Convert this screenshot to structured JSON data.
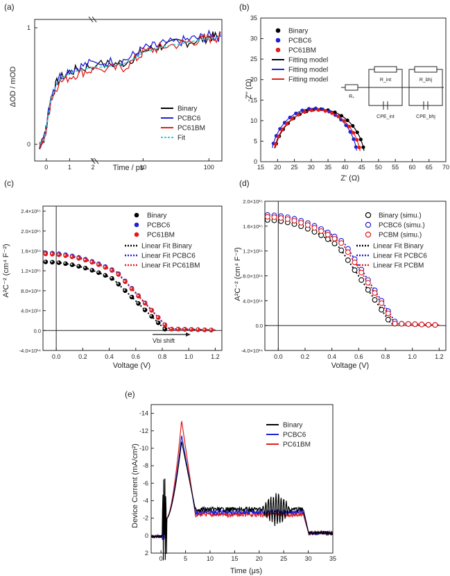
{
  "colors": {
    "binary": "#000000",
    "pcbc6": "#1f1fd6",
    "pc61bm": "#e01b1b",
    "fit": "#22d3d3",
    "axis": "#222222"
  },
  "chart_data": [
    {
      "panel": "(a)",
      "type": "line",
      "xlabel": "Time / ps",
      "ylabel": "ΔOD / mOD",
      "x_ticks": [
        "0",
        "1",
        "2",
        "10",
        "100"
      ],
      "y_ticks": [
        "0",
        "1"
      ],
      "legend": [
        "Binary",
        "PCBC6",
        "PC61BM",
        "Fit"
      ],
      "legend_position": "lower-right",
      "series": [
        {
          "name": "Binary",
          "x": [
            -0.3,
            -0.1,
            0,
            0.2,
            0.5,
            1,
            1.5,
            2,
            5,
            10,
            20,
            50,
            100,
            150
          ],
          "y": [
            0.0,
            0.05,
            0.15,
            0.4,
            0.55,
            0.62,
            0.65,
            0.68,
            0.7,
            0.8,
            0.85,
            0.88,
            0.92,
            0.93
          ]
        },
        {
          "name": "PCBC6",
          "x": [
            -0.3,
            -0.1,
            0,
            0.2,
            0.5,
            1,
            1.5,
            2,
            5,
            10,
            20,
            50,
            100,
            150
          ],
          "y": [
            0.0,
            0.05,
            0.15,
            0.42,
            0.57,
            0.64,
            0.67,
            0.7,
            0.72,
            0.82,
            0.86,
            0.9,
            0.93,
            0.92
          ]
        },
        {
          "name": "PC61BM",
          "x": [
            -0.3,
            -0.1,
            0,
            0.2,
            0.5,
            1,
            1.5,
            2,
            5,
            10,
            20,
            50,
            100,
            150
          ],
          "y": [
            0.0,
            0.04,
            0.13,
            0.38,
            0.52,
            0.58,
            0.62,
            0.64,
            0.66,
            0.79,
            0.84,
            0.88,
            0.91,
            0.92
          ]
        },
        {
          "name": "Fit",
          "x": [
            -0.3,
            -0.1,
            0,
            0.2,
            0.5,
            1,
            1.5,
            2,
            5,
            10,
            20,
            50,
            100,
            150
          ],
          "y": [
            0.0,
            0.04,
            0.14,
            0.39,
            0.54,
            0.61,
            0.64,
            0.66,
            0.69,
            0.79,
            0.84,
            0.88,
            0.91,
            0.92
          ]
        }
      ]
    },
    {
      "panel": "(b)",
      "type": "scatter",
      "xlabel": "Z' (Ω)",
      "ylabel": "-Z'' (Ω)",
      "xlim": [
        15,
        70
      ],
      "ylim": [
        0,
        35
      ],
      "x_ticks": [
        "15",
        "20",
        "25",
        "30",
        "35",
        "40",
        "45",
        "50",
        "55",
        "60",
        "65",
        "70"
      ],
      "y_ticks": [
        "0",
        "5",
        "10",
        "15",
        "20",
        "25",
        "30",
        "35"
      ],
      "legend": [
        "Binary",
        "PCBC6",
        "PC61BM",
        "Fitting model",
        "Fitting model",
        "Fitting model"
      ],
      "circuit_labels": [
        "Rₛ",
        "R_int",
        "R_bhj",
        "CPE_int",
        "CPE_bhj"
      ],
      "series": [
        {
          "name": "Binary",
          "center": 32.4,
          "radius": 13.6,
          "y_max": 12.8
        },
        {
          "name": "PCBC6",
          "center": 30.9,
          "radius": 12.9,
          "y_max": 13.0
        },
        {
          "name": "PC61BM",
          "center": 31.7,
          "radius": 13.1,
          "y_max": 12.6
        }
      ]
    },
    {
      "panel": "(c)",
      "type": "scatter",
      "xlabel": "Voltage (V)",
      "ylabel": "A²C⁻² (cm⁴ F⁻²)",
      "xlim": [
        -0.1,
        1.25
      ],
      "ylim": [
        -400000000000000.0,
        2500000000000000.0
      ],
      "x_ticks": [
        "0.0",
        "0.2",
        "0.4",
        "0.6",
        "0.8",
        "1.0",
        "1.2"
      ],
      "y_ticks": [
        "-4.0×10¹⁴",
        "0.0",
        "4.0×10¹⁴",
        "8.0×10¹⁴",
        "1.2×10¹⁵",
        "1.6×10¹⁵",
        "2.0×10¹⁵",
        "2.4×10¹⁵"
      ],
      "legend": [
        "Binary",
        "PCBC6",
        "PC61BM",
        "Linear Fit Binary",
        "Linear Fit PCBC6",
        "Linear Fit PC61BM"
      ],
      "annotation": "Vbi shift",
      "series": [
        {
          "name": "Binary",
          "v0": 1380000000000000.0,
          "vbi": 0.78
        },
        {
          "name": "PCBC6",
          "v0": 1560000000000000.0,
          "vbi": 0.81
        },
        {
          "name": "PC61BM",
          "v0": 1540000000000000.0,
          "vbi": 0.81
        }
      ]
    },
    {
      "panel": "(d)",
      "type": "scatter",
      "xlabel": "Voltage (V)",
      "ylabel": "A²C⁻² (cm⁴ F⁻²)",
      "xlim": [
        -0.1,
        1.25
      ],
      "ylim": [
        -400000000000000.0,
        2000000000000000.0
      ],
      "x_ticks": [
        "0.0",
        "0.2",
        "0.4",
        "0.6",
        "0.8",
        "1.0",
        "1.2"
      ],
      "y_ticks": [
        "-4.0×10¹⁴",
        "0.0",
        "4.0×10¹⁴",
        "8.0×10¹⁴",
        "1.2×10¹⁵",
        "1.6×10¹⁵",
        "2.0×10¹⁵"
      ],
      "legend": [
        "Binary (simu.)",
        "PCBC6 (simu.)",
        "PCBM (simu.)",
        "Linear Fit Binary",
        "Linear Fit PCBC6",
        "Linear Fit PCBM"
      ],
      "series": [
        {
          "name": "Binary (simu.)",
          "v0": 1700000000000000.0,
          "vbi": 0.8
        },
        {
          "name": "PCBC6 (simu.)",
          "v0": 1780000000000000.0,
          "vbi": 0.84
        },
        {
          "name": "PCBM (simu.)",
          "v0": 1750000000000000.0,
          "vbi": 0.83
        }
      ]
    },
    {
      "panel": "(e)",
      "type": "line",
      "xlabel": "Time (μs)",
      "ylabel": "Device Current (mA/cm²)",
      "xlim": [
        -2,
        35
      ],
      "ylim": [
        2,
        -15
      ],
      "x_ticks": [
        "0",
        "5",
        "10",
        "15",
        "20",
        "25",
        "30",
        "35"
      ],
      "y_ticks": [
        "-14",
        "-12",
        "-10",
        "-8",
        "-6",
        "-4",
        "-2",
        "0",
        "2"
      ],
      "legend": [
        "Binary",
        "PCBC6",
        "PC61BM"
      ],
      "series": [
        {
          "name": "Binary",
          "peak": -10.8,
          "plateau": -3.0
        },
        {
          "name": "PCBC6",
          "peak": -11.5,
          "plateau": -2.7
        },
        {
          "name": "PC61BM",
          "peak": -13.2,
          "plateau": -2.4
        }
      ]
    }
  ]
}
